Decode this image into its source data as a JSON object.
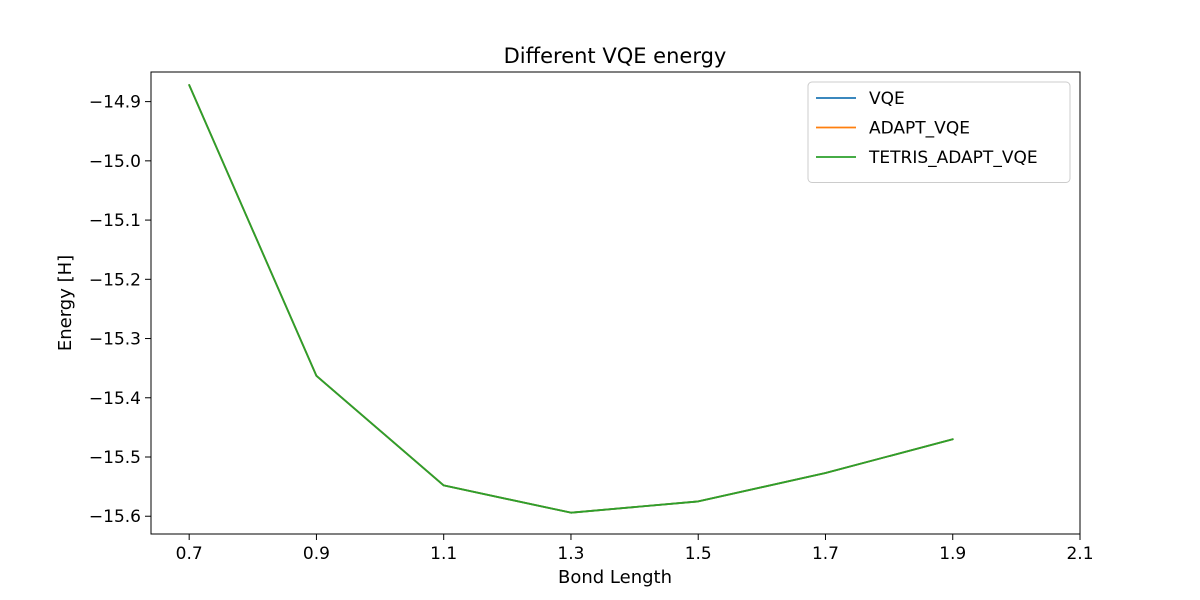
{
  "chart_data": {
    "type": "line",
    "title": "Different VQE energy",
    "xlabel": "Bond Length",
    "ylabel": "Energy [H]",
    "xlim": [
      0.64,
      2.1
    ],
    "ylim": [
      -15.63,
      -14.85
    ],
    "xticks": [
      0.7,
      0.9,
      1.1,
      1.3,
      1.5,
      1.7,
      1.9,
      2.1
    ],
    "xtick_labels": [
      "0.7",
      "0.9",
      "1.1",
      "1.3",
      "1.5",
      "1.7",
      "1.9",
      "2.1"
    ],
    "yticks": [
      -14.9,
      -15.0,
      -15.1,
      -15.2,
      -15.3,
      -15.4,
      -15.5,
      -15.6
    ],
    "ytick_labels": [
      "−14.9",
      "−15.0",
      "−15.1",
      "−15.2",
      "−15.3",
      "−15.4",
      "−15.5",
      "−15.6"
    ],
    "grid": false,
    "legend_position": "top-right",
    "x": [
      0.7,
      0.9,
      1.1,
      1.3,
      1.5,
      1.7,
      1.9
    ],
    "series": [
      {
        "name": "VQE",
        "color": "#1f77b4",
        "values": [
          -14.872,
          -15.363,
          -15.548,
          -15.594,
          -15.575,
          -15.527,
          -15.47
        ]
      },
      {
        "name": "ADAPT_VQE",
        "color": "#ff7f0e",
        "values": [
          -14.872,
          -15.363,
          -15.548,
          -15.594,
          -15.575,
          -15.527,
          -15.47
        ]
      },
      {
        "name": "TETRIS_ADAPT_VQE",
        "color": "#2ca02c",
        "values": [
          -14.872,
          -15.363,
          -15.548,
          -15.594,
          -15.575,
          -15.527,
          -15.47
        ]
      }
    ]
  }
}
